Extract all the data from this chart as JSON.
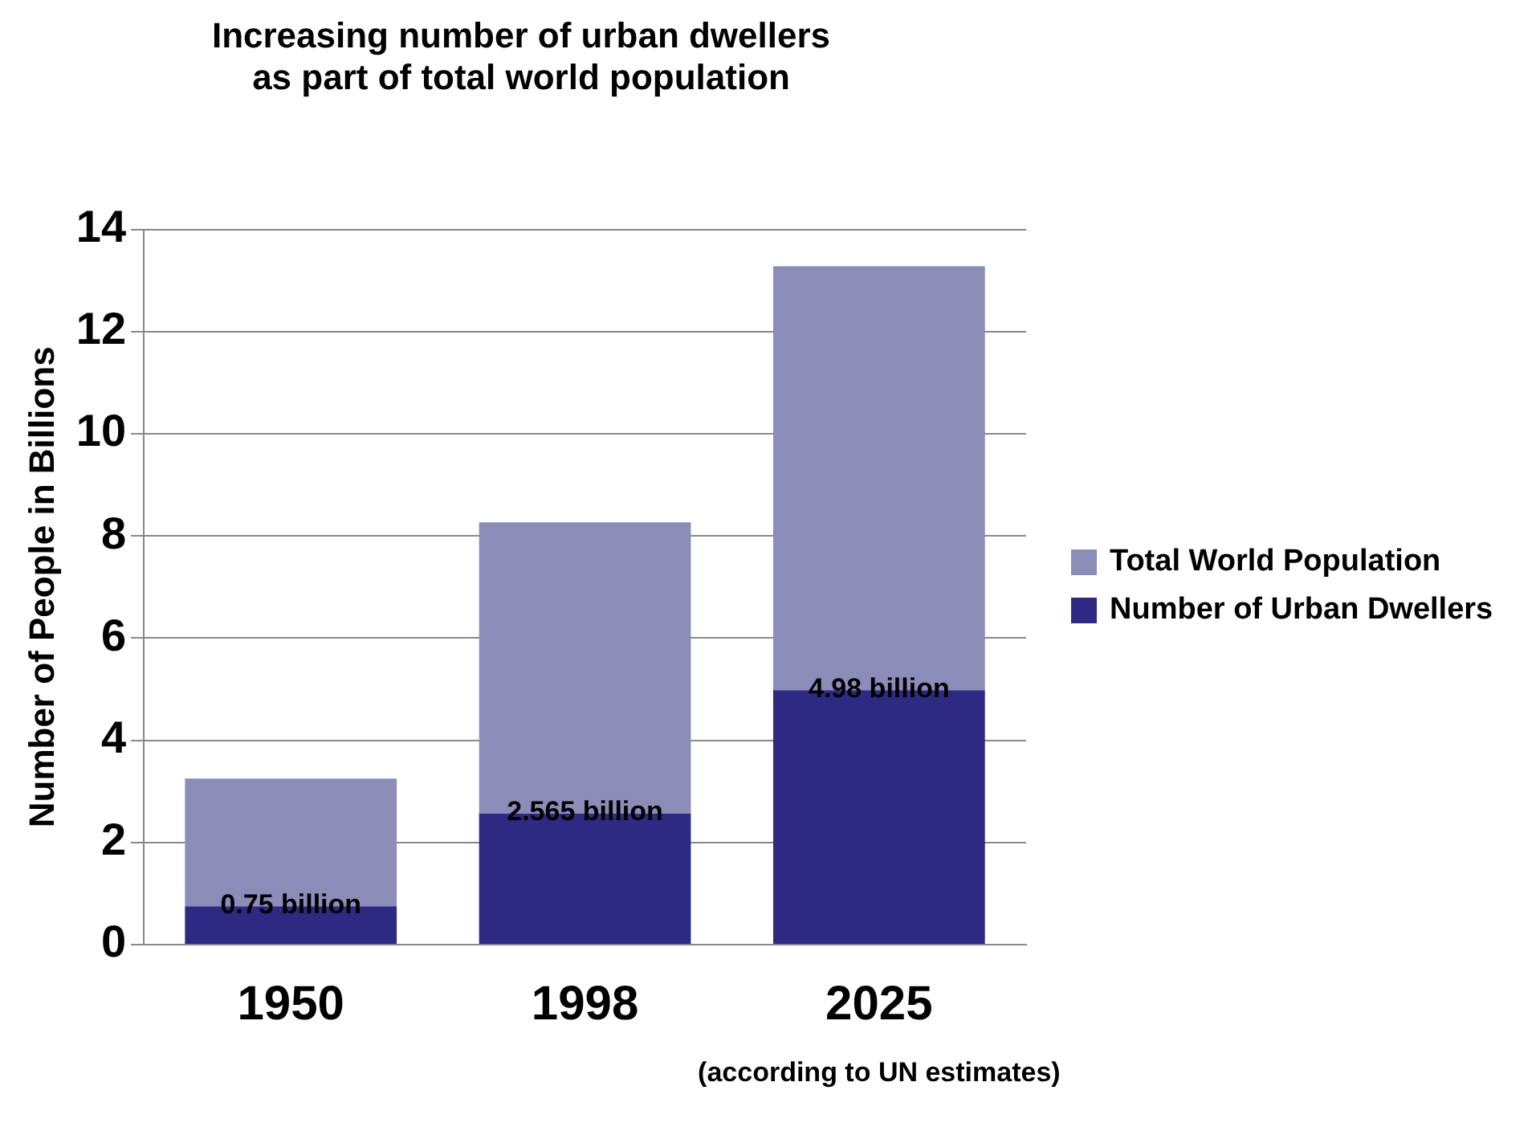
{
  "chart_data": {
    "type": "bar",
    "title": "Increasing number of urban dwellers\nas part of total world population",
    "ylabel": "Number of People in Billions",
    "categories": [
      "1950",
      "1998",
      "2025"
    ],
    "stacked": true,
    "series": [
      {
        "name": "Number of Urban Dwellers",
        "color": "#2e2a84",
        "values": [
          0.75,
          2.565,
          4.98
        ],
        "value_labels": [
          "0.75 billion",
          "2.565 billion",
          "4.98 billion"
        ]
      },
      {
        "name": "Total World Population",
        "color": "#8b8db8",
        "values": [
          2.5,
          5.7,
          8.3
        ]
      }
    ],
    "ylim": [
      0,
      14
    ],
    "yticks": [
      0,
      2,
      4,
      6,
      8,
      10,
      12,
      14
    ],
    "grid": "y",
    "legend": "right",
    "annotations": [
      "(according to UN estimates)"
    ]
  }
}
